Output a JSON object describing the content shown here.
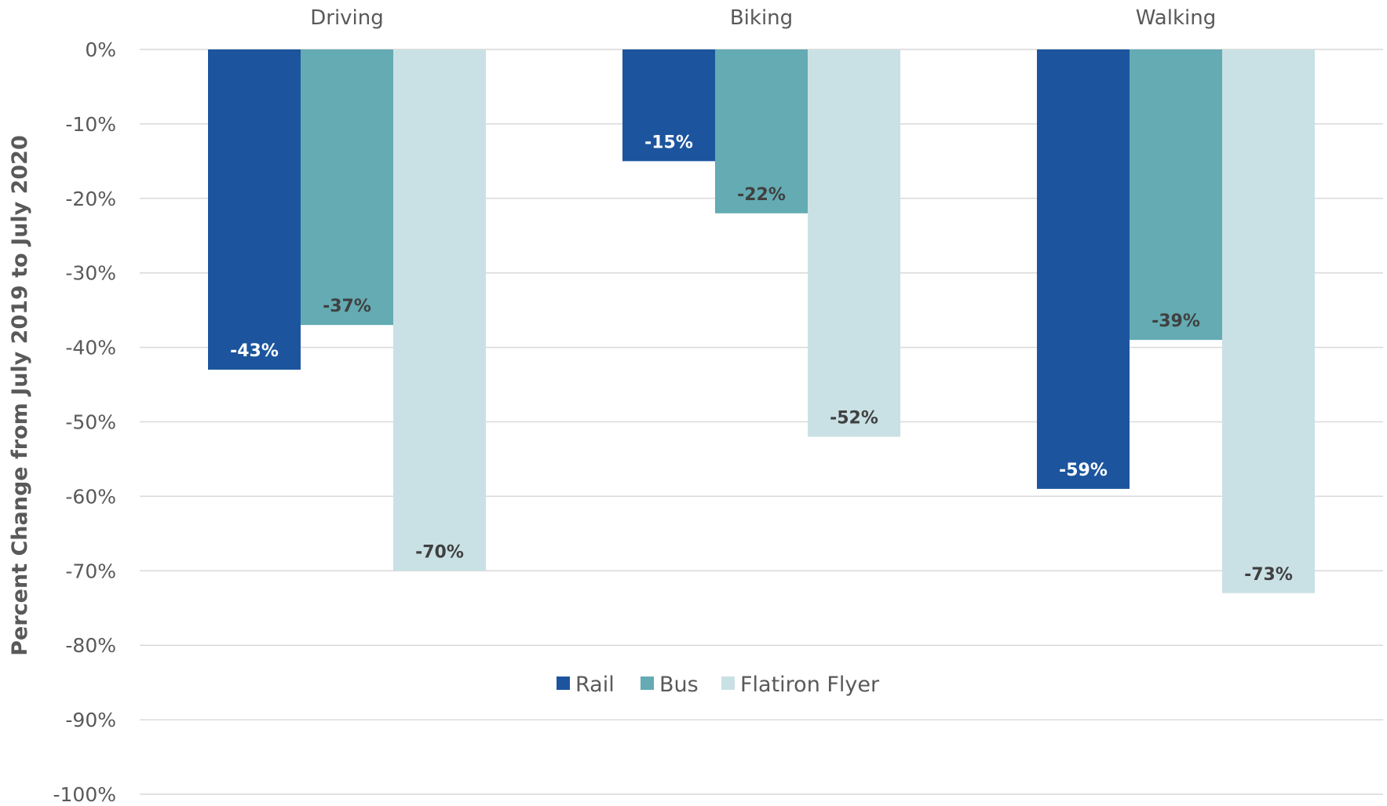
{
  "chart_data": {
    "type": "bar",
    "title": "",
    "xlabel": "",
    "ylabel": "Percent Change from July 2019 to July 2020",
    "categories": [
      "Driving",
      "Biking",
      "Walking"
    ],
    "series": [
      {
        "name": "Rail",
        "color": "#1c559e",
        "values": [
          -43,
          -15,
          -59
        ],
        "labels": [
          "-43%",
          "-15%",
          "-59%"
        ]
      },
      {
        "name": "Bus",
        "color": "#64abb3",
        "values": [
          -37,
          -22,
          -39
        ],
        "labels": [
          "-37%",
          "-22%",
          "-39%"
        ]
      },
      {
        "name": "Flatiron Flyer",
        "color": "#c9e1e5",
        "values": [
          -70,
          -52,
          -73
        ],
        "labels": [
          "-70%",
          "-52%",
          "-73%"
        ]
      }
    ],
    "ylim": [
      -100,
      0
    ],
    "yticks": [
      0,
      -10,
      -20,
      -30,
      -40,
      -50,
      -60,
      -70,
      -80,
      -90,
      -100
    ],
    "ytick_labels": [
      "0%",
      "-10%",
      "-20%",
      "-30%",
      "-40%",
      "-50%",
      "-60%",
      "-70%",
      "-80%",
      "-90%",
      "-100%"
    ],
    "category_axis": "top",
    "grid": true,
    "legend_position": "bottom-center"
  }
}
